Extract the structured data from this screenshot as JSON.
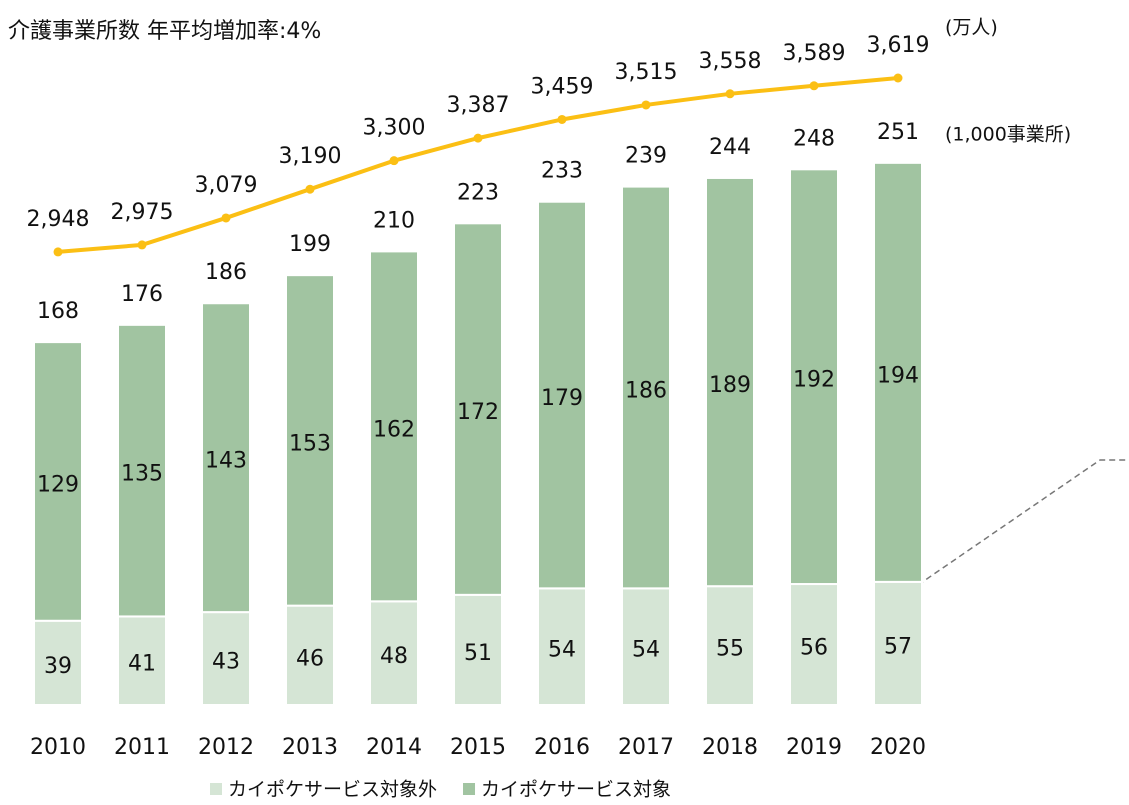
{
  "chart_data": {
    "type": "bar",
    "stacked": true,
    "title": "介護事業所数 年平均増加率:4%",
    "unit_label": "(1,000事業所)",
    "y2_unit_label": "(万人)",
    "categories": [
      "2010",
      "2011",
      "2012",
      "2013",
      "2014",
      "2015",
      "2016",
      "2017",
      "2018",
      "2019",
      "2020"
    ],
    "series": [
      {
        "name": "カイポケサービス対象外",
        "color": "#d5e5d5",
        "values": [
          39,
          41,
          43,
          46,
          48,
          51,
          54,
          54,
          55,
          56,
          57
        ]
      },
      {
        "name": "カイポケサービス対象",
        "color": "#a1c4a1",
        "values": [
          129,
          135,
          143,
          153,
          162,
          172,
          179,
          186,
          189,
          192,
          194
        ]
      },
      {
        "type": "line",
        "axis": "y2",
        "color": "#fbbf14",
        "values": [
          2948,
          2975,
          3079,
          3190,
          3300,
          3387,
          3459,
          3515,
          3558,
          3589,
          3619
        ],
        "value_labels": [
          "2,948",
          "2,975",
          "3,079",
          "3,190",
          "3,300",
          "3,387",
          "3,459",
          "3,515",
          "3,558",
          "3,589",
          "3,619"
        ]
      }
    ],
    "totals": [
      168,
      176,
      186,
      199,
      210,
      223,
      233,
      239,
      244,
      248,
      251
    ],
    "ylim": [
      0,
      300
    ],
    "y2lim": [
      1200,
      3700
    ],
    "legend": "bottom"
  }
}
